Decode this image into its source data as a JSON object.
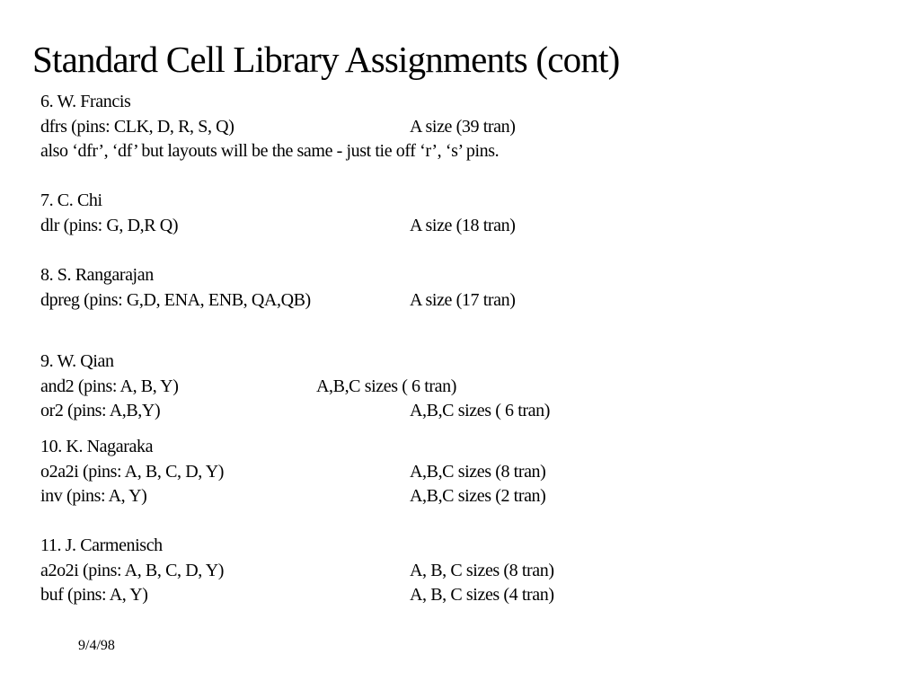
{
  "title": "Standard Cell Library Assignments (cont)",
  "groups": [
    {
      "header": "6. W. Francis",
      "lines": [
        {
          "left": "dfrs   (pins: CLK, D, R, S, Q)",
          "right": "A size (39 tran)"
        },
        {
          "left": "also ‘dfr’, ‘df’  but layouts will be the same - just tie off ‘r’, ‘s’ pins.",
          "right": ""
        }
      ]
    },
    {
      "header": "7.  C. Chi",
      "lines": [
        {
          "left": "dlr  (pins: G, D,R Q)",
          "right": "A size (18 tran)"
        }
      ]
    },
    {
      "header": "8.  S. Rangarajan",
      "lines": [
        {
          "left": "dpreg (pins: G,D, ENA, ENB, QA,QB)",
          "right": "A size  (17 tran)"
        }
      ]
    },
    {
      "header": "9. W. Qian",
      "lines": [
        {
          "left": "and2   (pins: A, B, Y)",
          "right": "A,B,C sizes ( 6 tran)"
        },
        {
          "left": "or2 (pins: A,B,Y)",
          "right": "A,B,C sizes ( 6 tran)"
        }
      ]
    },
    {
      "header": "10.  K. Nagaraka",
      "lines": [
        {
          "left": "o2a2i (pins: A, B, C, D, Y)",
          "right": "A,B,C sizes (8 tran)"
        },
        {
          "left": "inv  (pins: A, Y)",
          "right": "A,B,C sizes (2 tran)"
        }
      ]
    },
    {
      "header": "11. J. Carmenisch",
      "lines": [
        {
          "left": "a2o2i (pins: A, B, C, D, Y)",
          "right": "A, B, C sizes (8 tran)"
        },
        {
          "left": "buf (pins: A, Y)",
          "right": "A, B, C sizes (4 tran)"
        }
      ]
    }
  ],
  "footer": {
    "date": "9/4/98"
  }
}
